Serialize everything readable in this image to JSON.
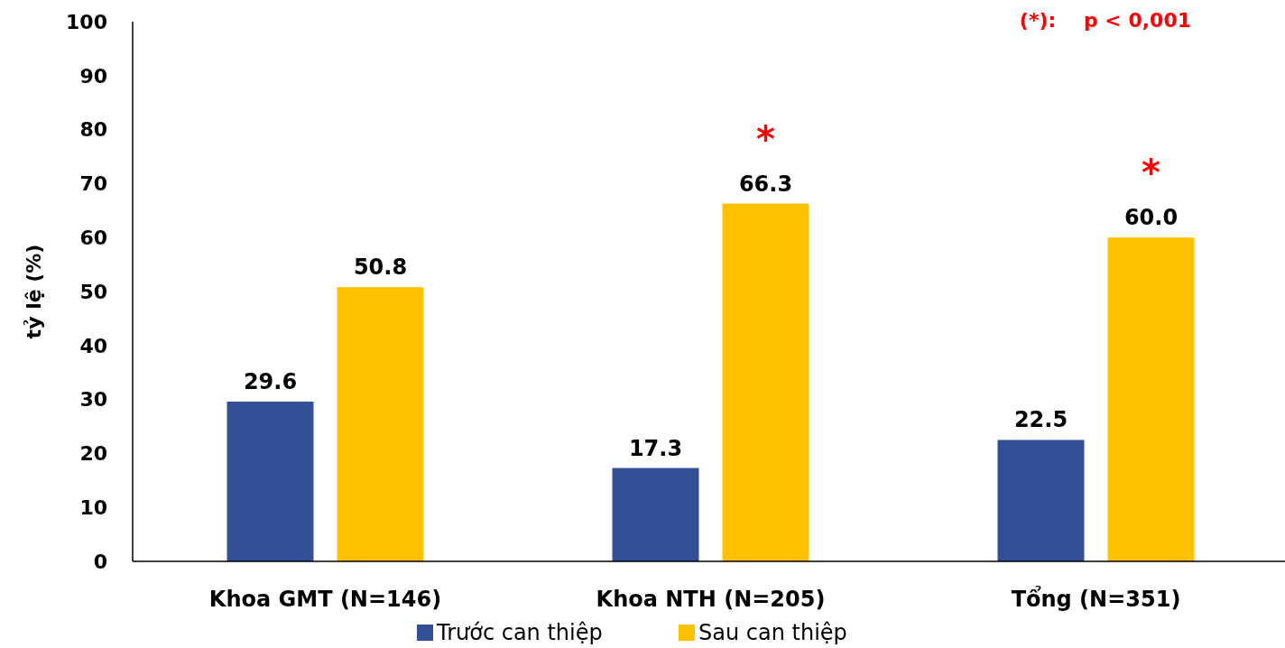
{
  "chart_data": {
    "type": "bar",
    "ylabel": "tỷ lệ (%)",
    "categories": [
      "Khoa GMT (N=146)",
      "Khoa NTH (N=205)",
      "Tổng (N=351)"
    ],
    "series": [
      {
        "name": "Trước can thiệp",
        "color": "#335096",
        "values": [
          29.6,
          17.3,
          22.5
        ]
      },
      {
        "name": "Sau can thiệp",
        "color": "#ffc000",
        "values": [
          50.8,
          66.3,
          60.0
        ]
      }
    ],
    "value_labels": [
      [
        "29.6",
        "17.3",
        "22.5"
      ],
      [
        "50.8",
        "66.3",
        "60.0"
      ]
    ],
    "ylim": [
      0,
      100
    ],
    "yticks": [
      0,
      10,
      20,
      30,
      40,
      50,
      60,
      70,
      80,
      90,
      100
    ],
    "grid": false,
    "legend": "bottom",
    "annotations": [
      "(*):    p < 0,001",
      "*",
      "*"
    ]
  }
}
